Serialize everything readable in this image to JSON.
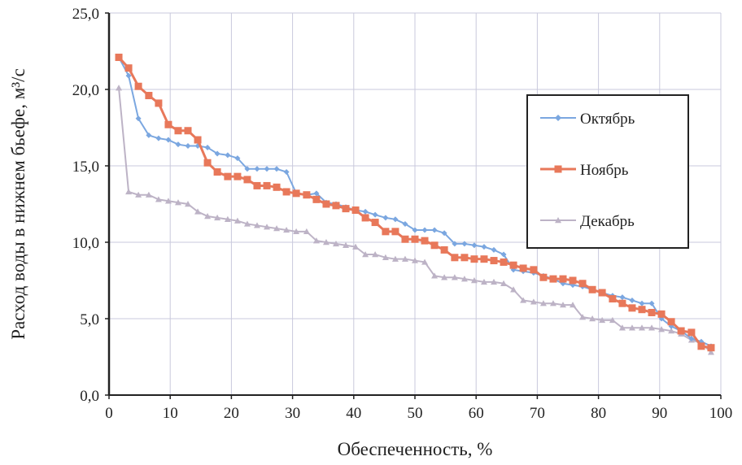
{
  "chart_data": {
    "type": "line",
    "title": "",
    "xlabel": "Обеспеченность, %",
    "ylabel": "Расход воды в нижнем бьефе, м³/с",
    "xlim": [
      0,
      100
    ],
    "ylim": [
      0,
      25
    ],
    "xticks": [
      0,
      10,
      20,
      30,
      40,
      50,
      60,
      70,
      80,
      90,
      100
    ],
    "xtick_labels": [
      "0",
      "10",
      "20",
      "30",
      "40",
      "50",
      "60",
      "70",
      "80",
      "90",
      "100"
    ],
    "yticks": [
      0,
      5,
      10,
      15,
      20,
      25
    ],
    "ytick_labels": [
      "0,0",
      "5,0",
      "10,0",
      "15,0",
      "20,0",
      "25,0"
    ],
    "grid": true,
    "legend_position": "right",
    "x": [
      1.6,
      3.2,
      4.8,
      6.5,
      8.1,
      9.7,
      11.3,
      12.9,
      14.5,
      16.1,
      17.7,
      19.4,
      21.0,
      22.6,
      24.2,
      25.8,
      27.4,
      29.0,
      30.6,
      32.3,
      33.9,
      35.5,
      37.1,
      38.7,
      40.3,
      41.9,
      43.5,
      45.2,
      46.8,
      48.4,
      50.0,
      51.6,
      53.2,
      54.8,
      56.5,
      58.1,
      59.7,
      61.3,
      62.9,
      64.5,
      66.1,
      67.7,
      69.4,
      71.0,
      72.6,
      74.2,
      75.8,
      77.4,
      79.0,
      80.6,
      82.3,
      83.9,
      85.5,
      87.1,
      88.7,
      90.3,
      91.9,
      93.5,
      95.2,
      96.8,
      98.4
    ],
    "series": [
      {
        "name": "Октябрь",
        "color": "#7ba7e0",
        "marker": "diamond",
        "values": [
          22.1,
          20.9,
          18.1,
          17.0,
          16.8,
          16.7,
          16.4,
          16.3,
          16.3,
          16.2,
          15.8,
          15.7,
          15.5,
          14.8,
          14.8,
          14.8,
          14.8,
          14.6,
          13.2,
          13.1,
          13.2,
          12.6,
          12.5,
          12.3,
          12.1,
          12.0,
          11.8,
          11.6,
          11.5,
          11.2,
          10.8,
          10.8,
          10.8,
          10.6,
          9.9,
          9.9,
          9.8,
          9.7,
          9.5,
          9.2,
          8.2,
          8.1,
          8.0,
          7.8,
          7.6,
          7.3,
          7.2,
          7.1,
          6.9,
          6.7,
          6.5,
          6.4,
          6.2,
          6.0,
          6.0,
          5.0,
          4.5,
          4.2,
          3.7,
          3.5,
          3.2
        ]
      },
      {
        "name": "Ноябрь",
        "color": "#e8785a",
        "marker": "square",
        "values": [
          22.1,
          21.4,
          20.2,
          19.6,
          19.1,
          17.7,
          17.3,
          17.3,
          16.7,
          15.2,
          14.6,
          14.3,
          14.3,
          14.1,
          13.7,
          13.7,
          13.6,
          13.3,
          13.2,
          13.1,
          12.8,
          12.5,
          12.4,
          12.2,
          12.1,
          11.6,
          11.3,
          10.7,
          10.7,
          10.2,
          10.2,
          10.1,
          9.8,
          9.5,
          9.0,
          9.0,
          8.9,
          8.9,
          8.8,
          8.7,
          8.5,
          8.3,
          8.2,
          7.7,
          7.6,
          7.6,
          7.5,
          7.3,
          6.9,
          6.7,
          6.3,
          6.0,
          5.7,
          5.6,
          5.4,
          5.3,
          4.8,
          4.2,
          4.1,
          3.2,
          3.1
        ]
      },
      {
        "name": "Декабрь",
        "color": "#bdb3c6",
        "marker": "triangle",
        "values": [
          20.1,
          13.3,
          13.1,
          13.1,
          12.8,
          12.7,
          12.6,
          12.5,
          12.0,
          11.7,
          11.6,
          11.5,
          11.4,
          11.2,
          11.1,
          11.0,
          10.9,
          10.8,
          10.7,
          10.7,
          10.1,
          10.0,
          9.9,
          9.8,
          9.7,
          9.2,
          9.2,
          9.0,
          8.9,
          8.9,
          8.8,
          8.7,
          7.8,
          7.7,
          7.7,
          7.6,
          7.5,
          7.4,
          7.4,
          7.3,
          6.9,
          6.2,
          6.1,
          6.0,
          6.0,
          5.9,
          5.9,
          5.1,
          5.0,
          4.9,
          4.9,
          4.4,
          4.4,
          4.4,
          4.4,
          4.3,
          4.2,
          4.0,
          3.6,
          3.4,
          2.8
        ]
      }
    ]
  }
}
